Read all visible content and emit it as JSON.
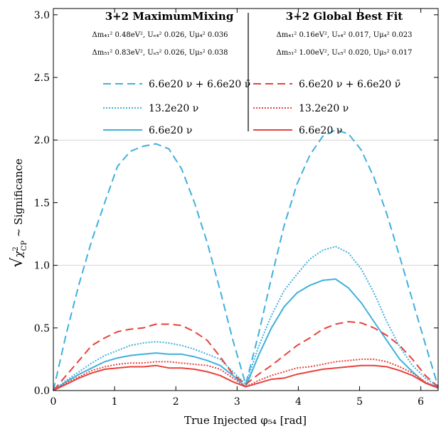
{
  "chart_data": {
    "type": "line",
    "xlabel": "True Injected φ₅₄ [rad]",
    "ylabel": "√χ²_CP ~ Significance",
    "ylabel_parts": {
      "root": "√",
      "chi": "χ",
      "sup": "2",
      "sub": "CP",
      "rest": " ~ Significance"
    },
    "xlim": [
      0,
      6.283
    ],
    "ylim": [
      0,
      3.05
    ],
    "xticks": [
      0,
      1,
      2,
      3,
      4,
      5,
      6
    ],
    "yticks": [
      0.0,
      0.5,
      1.0,
      1.5,
      2.0,
      2.5,
      3.0
    ],
    "ytick_labels": [
      "0.0",
      "0.5",
      "1.0",
      "1.5",
      "2.0",
      "2.5",
      "3.0"
    ],
    "gridlines_y": [
      1.0,
      2.0
    ],
    "colors": {
      "blue": "#3fb0dc",
      "red": "#e8413c"
    },
    "annotations": {
      "left": {
        "title": "3+2 MaximumMixing",
        "line1": "Δm₄₁² 0.48eV², Uₑ₄² 0.026, Uμ₄² 0.036",
        "line2": "Δm₅₁² 0.83eV², Uₑ₅² 0.026, Uμ₅² 0.038"
      },
      "right": {
        "title": "3+2 Global Best Fit",
        "line1": "Δm₄₁² 0.16eV², Uₑ₄² 0.017, Uμ₄² 0.023",
        "line2": "Δm₅₁² 1.00eV², Uₑ₅² 0.020, Uμ₅² 0.017"
      }
    },
    "legend": {
      "left": [
        "6.6e20 ν + 6.6e20 ν̄",
        "13.2e20 ν",
        "6.6e20 ν"
      ],
      "right": [
        "6.6e20 ν + 6.6e20 ν̄",
        "13.2e20 ν",
        "6.6e20 ν"
      ]
    },
    "x": [
      0,
      0.209,
      0.419,
      0.628,
      0.838,
      1.047,
      1.257,
      1.466,
      1.676,
      1.885,
      2.094,
      2.304,
      2.513,
      2.723,
      2.932,
      3.142,
      3.351,
      3.561,
      3.77,
      3.979,
      4.189,
      4.398,
      4.608,
      4.817,
      5.027,
      5.236,
      5.445,
      5.655,
      5.864,
      6.074,
      6.283
    ],
    "series": [
      {
        "group": "max-mixing",
        "color": "blue",
        "dash": "dashed",
        "values": [
          0.0,
          0.45,
          0.85,
          1.2,
          1.5,
          1.79,
          1.91,
          1.95,
          1.97,
          1.93,
          1.77,
          1.5,
          1.18,
          0.8,
          0.4,
          0.05,
          0.45,
          0.9,
          1.32,
          1.65,
          1.88,
          2.03,
          2.08,
          2.05,
          1.92,
          1.7,
          1.41,
          1.07,
          0.72,
          0.37,
          0.03
        ]
      },
      {
        "group": "max-mixing",
        "color": "blue",
        "dash": "dotted",
        "values": [
          0.0,
          0.08,
          0.15,
          0.22,
          0.28,
          0.32,
          0.36,
          0.38,
          0.39,
          0.38,
          0.36,
          0.33,
          0.29,
          0.25,
          0.15,
          0.05,
          0.35,
          0.6,
          0.8,
          0.93,
          1.05,
          1.12,
          1.15,
          1.1,
          0.97,
          0.78,
          0.55,
          0.35,
          0.2,
          0.1,
          0.03
        ]
      },
      {
        "group": "max-mixing",
        "color": "blue",
        "dash": "solid",
        "values": [
          0.0,
          0.07,
          0.13,
          0.18,
          0.23,
          0.26,
          0.28,
          0.29,
          0.3,
          0.29,
          0.29,
          0.27,
          0.24,
          0.2,
          0.12,
          0.03,
          0.28,
          0.5,
          0.67,
          0.78,
          0.84,
          0.88,
          0.89,
          0.82,
          0.7,
          0.55,
          0.4,
          0.25,
          0.15,
          0.06,
          0.03
        ]
      },
      {
        "group": "global-best-fit",
        "color": "red",
        "dash": "dashed",
        "values": [
          0.0,
          0.12,
          0.24,
          0.36,
          0.42,
          0.47,
          0.49,
          0.5,
          0.53,
          0.53,
          0.52,
          0.47,
          0.4,
          0.27,
          0.13,
          0.05,
          0.13,
          0.2,
          0.28,
          0.36,
          0.42,
          0.49,
          0.53,
          0.55,
          0.54,
          0.5,
          0.44,
          0.36,
          0.25,
          0.12,
          0.03
        ]
      },
      {
        "group": "global-best-fit",
        "color": "red",
        "dash": "dotted",
        "values": [
          0.0,
          0.06,
          0.11,
          0.16,
          0.19,
          0.21,
          0.22,
          0.22,
          0.23,
          0.23,
          0.22,
          0.21,
          0.2,
          0.17,
          0.1,
          0.03,
          0.08,
          0.12,
          0.15,
          0.18,
          0.19,
          0.21,
          0.23,
          0.24,
          0.25,
          0.25,
          0.23,
          0.19,
          0.14,
          0.07,
          0.02
        ]
      },
      {
        "group": "global-best-fit",
        "color": "red",
        "dash": "solid",
        "values": [
          0.0,
          0.05,
          0.1,
          0.14,
          0.17,
          0.18,
          0.19,
          0.19,
          0.2,
          0.18,
          0.18,
          0.17,
          0.15,
          0.12,
          0.07,
          0.03,
          0.06,
          0.09,
          0.1,
          0.13,
          0.15,
          0.17,
          0.18,
          0.19,
          0.2,
          0.2,
          0.19,
          0.16,
          0.12,
          0.06,
          0.02
        ]
      }
    ]
  }
}
